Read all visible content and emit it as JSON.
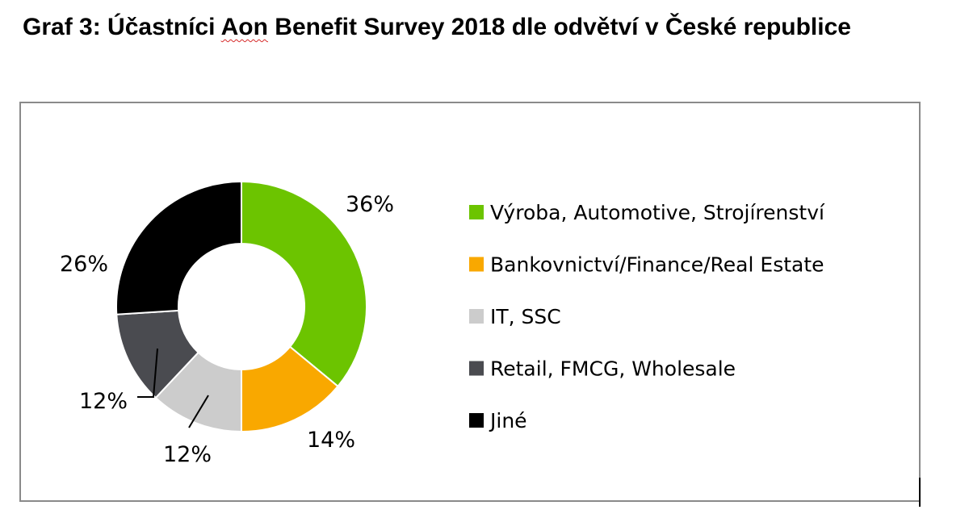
{
  "title": {
    "prefix": "Graf 3: Účastníci ",
    "spell_word": "Aon",
    "rest": " Benefit Survey 2018 dle odvětví v České republice"
  },
  "chart_data": {
    "type": "pie",
    "variant": "donut",
    "title": "Graf 3: Účastníci Aon Benefit Survey 2018 dle odvětví v České republice",
    "legend_position": "right",
    "series": [
      {
        "categories": [
          "Výroba, Automotive, Strojírenství",
          "Bankovnictví/Finance/Real Estate",
          "IT, SSC",
          "Retail, FMCG, Wholesale",
          "Jiné"
        ],
        "values": [
          36,
          14,
          12,
          12,
          26
        ],
        "labels": [
          "36%",
          "14%",
          "12%",
          "12%",
          "26%"
        ],
        "colors": [
          "#6cc400",
          "#f9a800",
          "#cccccc",
          "#4a4b50",
          "#000000"
        ]
      }
    ]
  }
}
